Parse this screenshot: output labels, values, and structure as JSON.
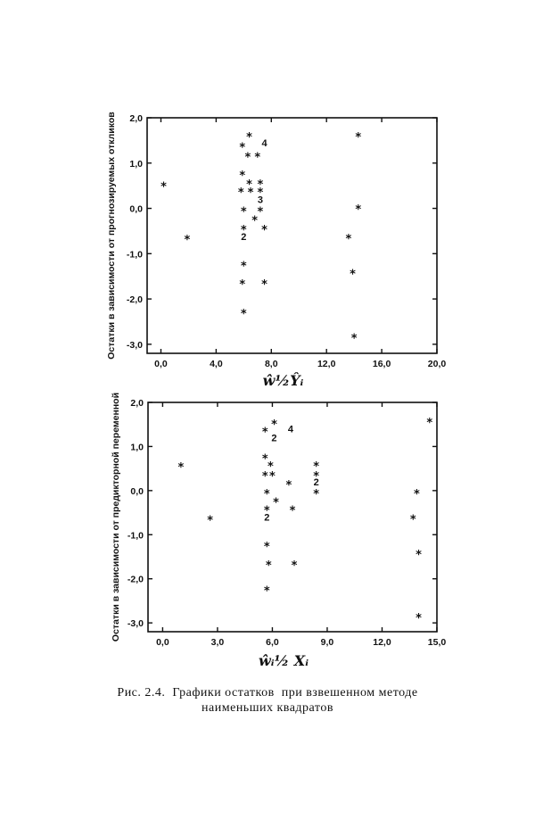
{
  "chart_data": [
    {
      "type": "scatter",
      "ylabel": "Остатки в зависимости от прогнозируемых откликов",
      "xlabel": "ŵ½Ŷᵢ",
      "xlim": [
        -1,
        20
      ],
      "ylim": [
        -3.2,
        2
      ],
      "xticks": [
        "0,0",
        "4,0",
        "8,0",
        "12,0",
        "16,0",
        "20,0"
      ],
      "xtick_values": [
        0,
        4,
        8,
        12,
        16,
        20
      ],
      "yticks": [
        "2,0",
        "1,0",
        "0,0",
        "-1,0",
        "-2,0",
        "-3,0"
      ],
      "ytick_values": [
        2,
        1,
        0,
        -1,
        -2,
        -3
      ],
      "points": [
        {
          "x": 0.2,
          "y": 0.55
        },
        {
          "x": 1.9,
          "y": -0.62
        },
        {
          "x": 6.4,
          "y": 1.65
        },
        {
          "x": 5.9,
          "y": 1.42
        },
        {
          "x": 6.3,
          "y": 1.2
        },
        {
          "x": 7.0,
          "y": 1.2
        },
        {
          "x": 5.9,
          "y": 0.8
        },
        {
          "x": 5.8,
          "y": 0.42
        },
        {
          "x": 6.4,
          "y": 0.6
        },
        {
          "x": 6.5,
          "y": 0.42
        },
        {
          "x": 7.2,
          "y": 0.6
        },
        {
          "x": 7.2,
          "y": 0.42
        },
        {
          "x": 6.0,
          "y": 0.0
        },
        {
          "x": 7.2,
          "y": 0.0
        },
        {
          "x": 6.8,
          "y": -0.2
        },
        {
          "x": 6.0,
          "y": -0.4
        },
        {
          "x": 7.5,
          "y": -0.4
        },
        {
          "x": 6.0,
          "y": -1.2
        },
        {
          "x": 5.9,
          "y": -1.6
        },
        {
          "x": 7.5,
          "y": -1.6
        },
        {
          "x": 6.0,
          "y": -2.25
        },
        {
          "x": 13.6,
          "y": -0.6
        },
        {
          "x": 13.9,
          "y": -1.38
        },
        {
          "x": 14.3,
          "y": 1.65
        },
        {
          "x": 14.3,
          "y": 0.05
        },
        {
          "x": 14.0,
          "y": -2.8
        }
      ],
      "annotations": [
        {
          "text": "4",
          "x": 7.5,
          "y": 1.45
        },
        {
          "text": "3",
          "x": 7.2,
          "y": 0.2
        },
        {
          "text": "2",
          "x": 6.0,
          "y": -0.62
        }
      ]
    },
    {
      "type": "scatter",
      "ylabel": "Остатки в зависимости от предикторной переменной",
      "xlabel": "ŵᵢ½ Xᵢ",
      "xlim": [
        -0.8,
        15
      ],
      "ylim": [
        -3.2,
        2
      ],
      "xticks": [
        "0,0",
        "3,0",
        "6,0",
        "9,0",
        "12,0",
        "15,0"
      ],
      "xtick_values": [
        0,
        3,
        6,
        9,
        12,
        15
      ],
      "yticks": [
        "2,0",
        "1,0",
        "0,0",
        "-1,0",
        "-2,0",
        "-3,0"
      ],
      "ytick_values": [
        2,
        1,
        0,
        -1,
        -2,
        -3
      ],
      "points": [
        {
          "x": 1.0,
          "y": 0.6
        },
        {
          "x": 2.6,
          "y": -0.6
        },
        {
          "x": 6.1,
          "y": 1.58
        },
        {
          "x": 5.6,
          "y": 1.4
        },
        {
          "x": 5.6,
          "y": 0.8
        },
        {
          "x": 5.9,
          "y": 0.62
        },
        {
          "x": 5.6,
          "y": 0.4
        },
        {
          "x": 6.0,
          "y": 0.4
        },
        {
          "x": 5.7,
          "y": 0.0
        },
        {
          "x": 6.2,
          "y": -0.2
        },
        {
          "x": 6.9,
          "y": 0.2
        },
        {
          "x": 7.1,
          "y": -0.38
        },
        {
          "x": 5.7,
          "y": -0.38
        },
        {
          "x": 5.7,
          "y": -1.2
        },
        {
          "x": 5.8,
          "y": -1.62
        },
        {
          "x": 7.2,
          "y": -1.62
        },
        {
          "x": 5.7,
          "y": -2.2
        },
        {
          "x": 8.4,
          "y": 0.62
        },
        {
          "x": 8.4,
          "y": 0.4
        },
        {
          "x": 8.4,
          "y": 0.0
        },
        {
          "x": 14.6,
          "y": 1.62
        },
        {
          "x": 13.9,
          "y": 0.0
        },
        {
          "x": 13.7,
          "y": -0.58
        },
        {
          "x": 14.0,
          "y": -1.38
        },
        {
          "x": 14.0,
          "y": -2.82
        }
      ],
      "annotations": [
        {
          "text": "4",
          "x": 7.0,
          "y": 1.4
        },
        {
          "text": "2",
          "x": 6.1,
          "y": 1.2
        },
        {
          "text": "2",
          "x": 8.4,
          "y": 0.2
        },
        {
          "text": "2",
          "x": 5.7,
          "y": -0.6
        }
      ]
    }
  ],
  "caption": {
    "line1": "Рис. 2.4.  Графики остатков  при взвешенном методе",
    "line2": "наименьших квадратов"
  }
}
